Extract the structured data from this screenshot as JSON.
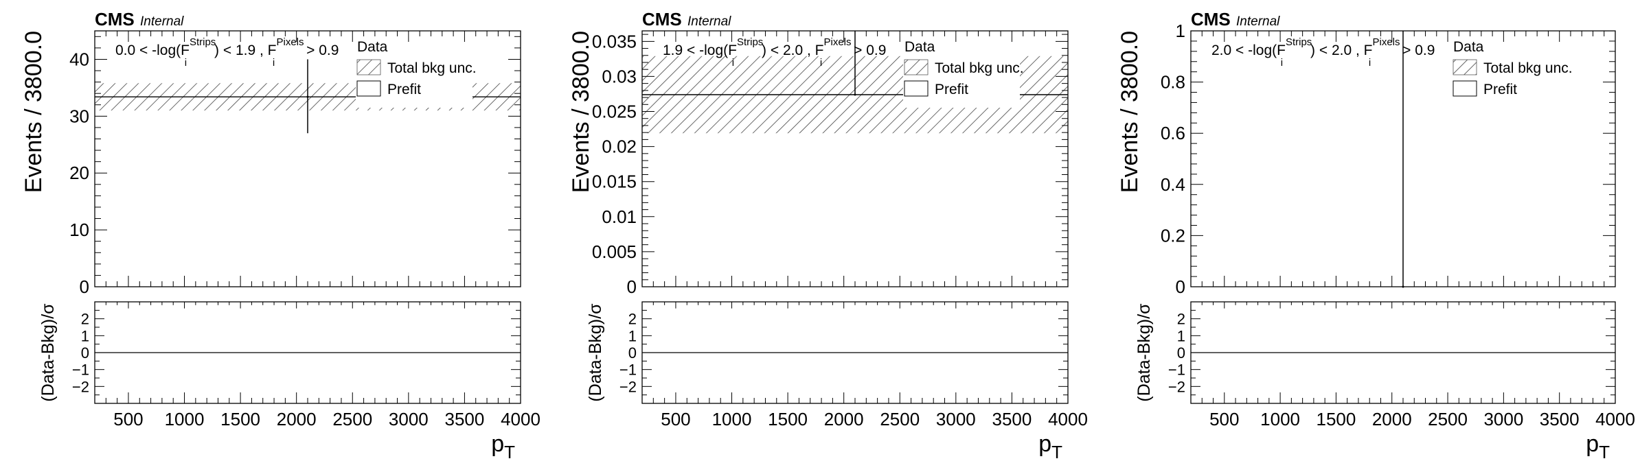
{
  "chart_data": [
    {
      "type": "bar",
      "experiment": "CMS",
      "status": "Internal",
      "region": {
        "pre": "0.0 < -log(F",
        "sup1": "Strips",
        "sub1": "i",
        "mid": ") < 1.9 , F",
        "sup2": "Pixels",
        "sub2": "i",
        "post": " > 0.9"
      },
      "ylabel": "Events / 3800.0",
      "ratio_ylabel": "(Data-Bkg)/σ",
      "xlabel": "p",
      "xlabel_sub": "T",
      "xlim": [
        200,
        4000
      ],
      "xticks": [
        "500",
        "1000",
        "1500",
        "2000",
        "2500",
        "3000",
        "3500",
        "4000"
      ],
      "ylim": [
        0,
        45
      ],
      "yticks": [
        "0",
        "10",
        "20",
        "30",
        "40"
      ],
      "ratio_ylim": [
        -3,
        3
      ],
      "ratio_yticks": [
        "2",
        "1",
        "0",
        "−1",
        "−2"
      ],
      "legend": {
        "data": "Data",
        "unc": "Total bkg unc.",
        "prefit": "Prefit"
      },
      "prefit": {
        "x_range": [
          200,
          4000
        ],
        "value": 33.4,
        "unc_low": 31.0,
        "unc_high": 35.8
      },
      "data_point": {
        "x": 2100,
        "y": 33.4,
        "y_low": 27.0,
        "y_high": 40.0
      },
      "ratio_value": 0.0
    },
    {
      "type": "bar",
      "experiment": "CMS",
      "status": "Internal",
      "region": {
        "pre": "1.9 < -log(F",
        "sup1": "Strips",
        "sub1": "i",
        "mid": ") < 2.0 , F",
        "sup2": "Pixels",
        "sub2": "i",
        "post": " > 0.9"
      },
      "ylabel": "Events / 3800.0",
      "ratio_ylabel": "(Data-Bkg)/σ",
      "xlabel": "p",
      "xlabel_sub": "T",
      "xlim": [
        200,
        4000
      ],
      "xticks": [
        "500",
        "1000",
        "1500",
        "2000",
        "2500",
        "3000",
        "3500",
        "4000"
      ],
      "ylim": [
        0,
        0.0365
      ],
      "yticks": [
        "0",
        "0.005",
        "0.01",
        "0.015",
        "0.02",
        "0.025",
        "0.03",
        "0.035"
      ],
      "ratio_ylim": [
        -3,
        3
      ],
      "ratio_yticks": [
        "2",
        "1",
        "0",
        "−1",
        "−2"
      ],
      "legend": {
        "data": "Data",
        "unc": "Total bkg unc.",
        "prefit": "Prefit"
      },
      "prefit": {
        "x_range": [
          200,
          4000
        ],
        "value": 0.0274,
        "unc_low": 0.0219,
        "unc_high": 0.0329
      },
      "data_point": {
        "x": 2100,
        "y": 0.0274,
        "y_low": 0.0274,
        "y_high": 0.0365
      },
      "ratio_value": 0.0
    },
    {
      "type": "bar",
      "experiment": "CMS",
      "status": "Internal",
      "region": {
        "pre": "2.0 < -log(F",
        "sup1": "Strips",
        "sub1": "i",
        "mid": ") < 2.0 , F",
        "sup2": "Pixels",
        "sub2": "i",
        "post": " > 0.9"
      },
      "ylabel": "Events / 3800.0",
      "ratio_ylabel": "(Data-Bkg)/σ",
      "xlabel": "p",
      "xlabel_sub": "T",
      "xlim": [
        200,
        4000
      ],
      "xticks": [
        "500",
        "1000",
        "1500",
        "2000",
        "2500",
        "3000",
        "3500",
        "4000"
      ],
      "ylim": [
        0,
        1
      ],
      "yticks": [
        "0",
        "0.2",
        "0.4",
        "0.6",
        "0.8",
        "1"
      ],
      "ratio_ylim": [
        -3,
        3
      ],
      "ratio_yticks": [
        "2",
        "1",
        "0",
        "−1",
        "−2"
      ],
      "legend": {
        "data": "Data",
        "unc": "Total bkg unc.",
        "prefit": "Prefit"
      },
      "prefit": null,
      "data_point": {
        "x": 2100,
        "y": 0.0,
        "y_low": 0.0,
        "y_high": 1.0
      },
      "ratio_value": 0.0
    }
  ]
}
